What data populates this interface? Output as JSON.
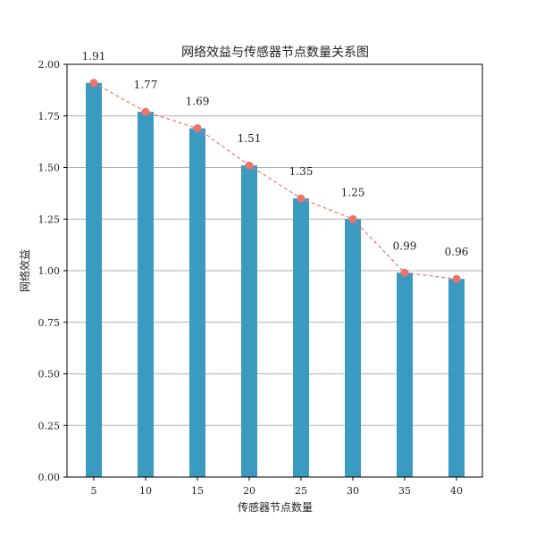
{
  "chart_data": {
    "type": "bar",
    "title": "网络效益与传感器节点数量关系图",
    "xlabel": "传感器节点数量",
    "ylabel": "网络效益",
    "categories": [
      "5",
      "10",
      "15",
      "20",
      "25",
      "30",
      "35",
      "40"
    ],
    "values": [
      1.91,
      1.77,
      1.69,
      1.51,
      1.35,
      1.25,
      0.99,
      0.96
    ],
    "data_labels": [
      "1.91",
      "1.77",
      "1.69",
      "1.51",
      "1.35",
      "1.25",
      "0.99",
      "0.96"
    ],
    "overlay_line": {
      "style": "dashed",
      "marker": "circle"
    },
    "ylim": [
      0,
      2.0
    ],
    "yticks": [
      "0.00",
      "0.25",
      "0.50",
      "0.75",
      "1.00",
      "1.25",
      "1.50",
      "1.75",
      "2.00"
    ],
    "ytick_values": [
      0,
      0.25,
      0.5,
      0.75,
      1.0,
      1.25,
      1.5,
      1.75,
      2.0
    ],
    "grid": "horizontal",
    "colors": {
      "bar": "#3a9abf",
      "line": "#f0726b",
      "grid": "#b0b0b0",
      "axis": "#000000"
    }
  }
}
